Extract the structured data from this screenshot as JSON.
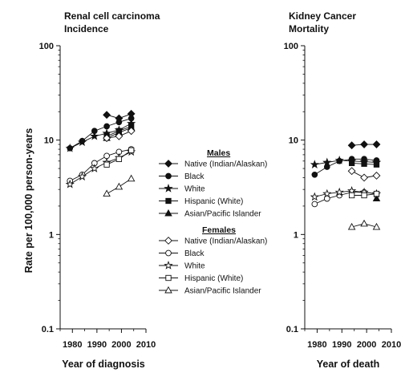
{
  "y_axis_label": "Rate per 100,000 person-years",
  "x_tick_labels": [
    "1980",
    "1990",
    "2000",
    "2010"
  ],
  "y_tick_labels": [
    "0.1",
    "1",
    "10",
    "100"
  ],
  "legend": {
    "males_heading": "Males",
    "females_heading": "Females",
    "groups": [
      "Native (Indian/Alaskan)",
      "Black",
      "White",
      "Hispanic (White)",
      "Asian/Pacific Islander"
    ]
  },
  "chart_data": [
    {
      "type": "line",
      "title_lines": [
        "Renal cell carcinoma",
        "Incidence"
      ],
      "xlabel": "Year of diagnosis",
      "ylabel": "Rate per 100,000 person-years",
      "yscale": "log",
      "ylim": [
        0.1,
        100
      ],
      "xlim": [
        1975,
        2010
      ],
      "series": [
        {
          "name": "Native (Indian/Alaskan)",
          "sex": "Males",
          "marker": "diamond",
          "filled": true,
          "x": [
            1994,
            1999,
            2004
          ],
          "y": [
            18.5,
            17.0,
            19.0
          ]
        },
        {
          "name": "Black",
          "sex": "Males",
          "marker": "circle",
          "filled": true,
          "x": [
            1979,
            1984,
            1989,
            1994,
            1999,
            2004
          ],
          "y": [
            8.2,
            9.8,
            12.5,
            14.0,
            15.5,
            17.0
          ]
        },
        {
          "name": "White",
          "sex": "Males",
          "marker": "star",
          "filled": true,
          "x": [
            1979,
            1984,
            1989,
            1994,
            1999,
            2004
          ],
          "y": [
            8.2,
            9.5,
            11.0,
            11.8,
            12.8,
            15.0
          ]
        },
        {
          "name": "Hispanic (White)",
          "sex": "Males",
          "marker": "square",
          "filled": true,
          "x": [
            1994,
            1999,
            2004
          ],
          "y": [
            11.0,
            12.5,
            14.0
          ]
        },
        {
          "name": "Asian/Pacific Islander",
          "sex": "Males",
          "marker": "triangle",
          "filled": true,
          "x": [
            1994,
            1999,
            2004
          ],
          "y": [
            10.5,
            12.0,
            13.5
          ]
        },
        {
          "name": "Native (Indian/Alaskan)",
          "sex": "Females",
          "marker": "diamond",
          "filled": false,
          "x": [
            1994,
            1999,
            2004
          ],
          "y": [
            10.5,
            11.0,
            12.5
          ]
        },
        {
          "name": "Black",
          "sex": "Females",
          "marker": "circle",
          "filled": false,
          "x": [
            1979,
            1984,
            1989,
            1994,
            1999,
            2004
          ],
          "y": [
            3.7,
            4.3,
            5.7,
            6.8,
            7.5,
            8.0
          ]
        },
        {
          "name": "White",
          "sex": "Females",
          "marker": "star",
          "filled": false,
          "x": [
            1979,
            1984,
            1989,
            1994,
            1999,
            2004
          ],
          "y": [
            3.4,
            4.1,
            5.0,
            5.8,
            6.5,
            7.5
          ]
        },
        {
          "name": "Hispanic (White)",
          "sex": "Females",
          "marker": "square",
          "filled": false,
          "x": [
            1994,
            1999,
            2004
          ],
          "y": [
            5.5,
            6.3,
            7.8
          ]
        },
        {
          "name": "Asian/Pacific Islander",
          "sex": "Females",
          "marker": "triangle",
          "filled": false,
          "x": [
            1994,
            1999,
            2004
          ],
          "y": [
            2.7,
            3.2,
            3.9
          ]
        }
      ]
    },
    {
      "type": "line",
      "title_lines": [
        "Kidney Cancer",
        "Mortality"
      ],
      "xlabel": "Year of death",
      "ylabel": "",
      "yscale": "log",
      "ylim": [
        0.1,
        100
      ],
      "xlim": [
        1975,
        2010
      ],
      "series": [
        {
          "name": "Native (Indian/Alaskan)",
          "sex": "Males",
          "marker": "diamond",
          "filled": true,
          "x": [
            1994,
            1999,
            2004
          ],
          "y": [
            8.8,
            9.0,
            9.0
          ]
        },
        {
          "name": "Black",
          "sex": "Males",
          "marker": "circle",
          "filled": true,
          "x": [
            1979,
            1984,
            1989,
            1994,
            1999,
            2004
          ],
          "y": [
            4.3,
            5.2,
            6.0,
            6.3,
            6.3,
            6.1
          ]
        },
        {
          "name": "White",
          "sex": "Males",
          "marker": "star",
          "filled": true,
          "x": [
            1979,
            1984,
            1989,
            1994,
            1999,
            2004
          ],
          "y": [
            5.5,
            5.8,
            6.1,
            6.0,
            5.9,
            5.8
          ]
        },
        {
          "name": "Hispanic (White)",
          "sex": "Males",
          "marker": "square",
          "filled": true,
          "x": [
            1994,
            1999,
            2004
          ],
          "y": [
            5.7,
            5.6,
            5.5
          ]
        },
        {
          "name": "Asian/Pacific Islander",
          "sex": "Males",
          "marker": "triangle",
          "filled": true,
          "x": [
            2004
          ],
          "y": [
            2.4
          ]
        },
        {
          "name": "Native (Indian/Alaskan)",
          "sex": "Females",
          "marker": "diamond",
          "filled": false,
          "x": [
            1994,
            1999,
            2004
          ],
          "y": [
            4.7,
            4.0,
            4.2
          ]
        },
        {
          "name": "Black",
          "sex": "Females",
          "marker": "circle",
          "filled": false,
          "x": [
            1979,
            1984,
            1989,
            1994,
            1999,
            2004
          ],
          "y": [
            2.1,
            2.4,
            2.6,
            2.8,
            2.8,
            2.7
          ]
        },
        {
          "name": "White",
          "sex": "Females",
          "marker": "star",
          "filled": false,
          "x": [
            1979,
            1984,
            1989,
            1994,
            1999,
            2004
          ],
          "y": [
            2.5,
            2.7,
            2.8,
            2.9,
            2.8,
            2.7
          ]
        },
        {
          "name": "Hispanic (White)",
          "sex": "Females",
          "marker": "square",
          "filled": false,
          "x": [
            1994,
            1999,
            2004
          ],
          "y": [
            2.6,
            2.6,
            2.7
          ]
        },
        {
          "name": "Asian/Pacific Islander",
          "sex": "Females",
          "marker": "triangle",
          "filled": false,
          "x": [
            1994,
            1999,
            2004
          ],
          "y": [
            1.2,
            1.3,
            1.2
          ]
        }
      ]
    }
  ]
}
